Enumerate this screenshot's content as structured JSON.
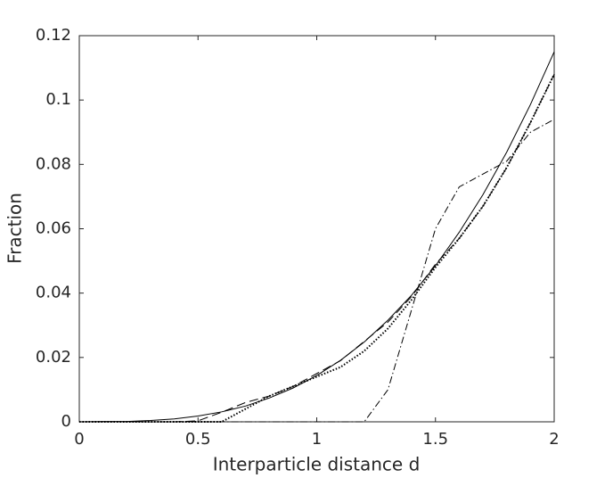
{
  "chart_data": {
    "type": "line",
    "xlabel": "Interparticle distance d",
    "ylabel": "Fraction",
    "x": [
      0,
      0.1,
      0.2,
      0.3,
      0.4,
      0.5,
      0.6,
      0.7,
      0.8,
      0.9,
      1.0,
      1.1,
      1.2,
      1.3,
      1.4,
      1.5,
      1.6,
      1.7,
      1.8,
      1.9,
      2.0
    ],
    "series": [
      {
        "color": "#000000",
        "dash": "solid",
        "values": [
          0,
          0.0001,
          0.0001,
          0.0004,
          0.0009,
          0.0018,
          0.0031,
          0.0049,
          0.0074,
          0.0105,
          0.0144,
          0.0191,
          0.0248,
          0.0316,
          0.0394,
          0.0485,
          0.0589,
          0.0706,
          0.0838,
          0.0986,
          0.115
        ]
      },
      {
        "color": "#000000",
        "dash": "dashed",
        "values": [
          0,
          0,
          0,
          0,
          0,
          0.0003,
          0.003,
          0.006,
          0.008,
          0.011,
          0.015,
          0.019,
          0.025,
          0.031,
          0.039,
          0.049,
          0.057,
          0.067,
          0.079,
          0.093,
          0.108
        ]
      },
      {
        "color": "#000000",
        "dash": "dotted",
        "values": [
          0,
          0,
          0,
          0,
          0,
          0,
          0,
          0.004,
          0.008,
          0.011,
          0.014,
          0.017,
          0.022,
          0.029,
          0.038,
          0.048,
          0.057,
          0.067,
          0.079,
          0.093,
          0.108
        ]
      },
      {
        "color": "#000000",
        "dash": "dashdot",
        "values": [
          0,
          0,
          0,
          0,
          0,
          0,
          0,
          0,
          0,
          0,
          0,
          0,
          0,
          0.01,
          0.035,
          0.06,
          0.073,
          0.077,
          0.081,
          0.09,
          0.094
        ]
      }
    ],
    "xlim": [
      0,
      2
    ],
    "xticks": [
      0,
      0.5,
      1,
      1.5,
      2
    ],
    "ylim": [
      0,
      0.12
    ],
    "yticks": [
      0,
      0.02,
      0.04,
      0.06,
      0.08,
      0.1,
      0.12
    ]
  }
}
